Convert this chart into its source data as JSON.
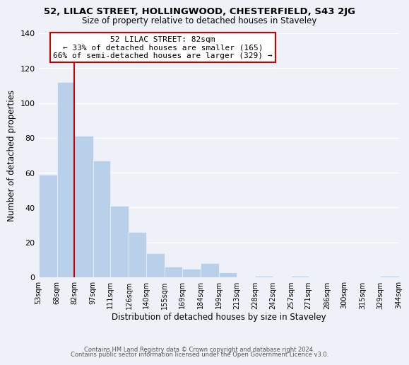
{
  "title": "52, LILAC STREET, HOLLINGWOOD, CHESTERFIELD, S43 2JG",
  "subtitle": "Size of property relative to detached houses in Staveley",
  "xlabel": "Distribution of detached houses by size in Staveley",
  "ylabel": "Number of detached properties",
  "bar_left_edges": [
    53,
    68,
    82,
    97,
    111,
    126,
    140,
    155,
    169,
    184,
    199,
    213,
    228,
    242,
    257,
    271,
    286,
    300,
    315,
    329
  ],
  "bar_heights": [
    59,
    112,
    81,
    67,
    41,
    26,
    14,
    6,
    5,
    8,
    3,
    0,
    1,
    0,
    1,
    0,
    0,
    0,
    0,
    1
  ],
  "bar_widths": [
    15,
    14,
    15,
    14,
    15,
    14,
    15,
    14,
    15,
    15,
    14,
    15,
    14,
    15,
    14,
    15,
    14,
    15,
    14,
    15
  ],
  "tick_labels": [
    "53sqm",
    "68sqm",
    "82sqm",
    "97sqm",
    "111sqm",
    "126sqm",
    "140sqm",
    "155sqm",
    "169sqm",
    "184sqm",
    "199sqm",
    "213sqm",
    "228sqm",
    "242sqm",
    "257sqm",
    "271sqm",
    "286sqm",
    "300sqm",
    "315sqm",
    "329sqm",
    "344sqm"
  ],
  "tick_positions": [
    53,
    68,
    82,
    97,
    111,
    126,
    140,
    155,
    169,
    184,
    199,
    213,
    228,
    242,
    257,
    271,
    286,
    300,
    315,
    329,
    344
  ],
  "bar_color": "#b8d0ea",
  "highlight_x": 82,
  "highlight_color": "#cc0000",
  "annotation_title": "52 LILAC STREET: 82sqm",
  "annotation_line1": "← 33% of detached houses are smaller (165)",
  "annotation_line2": "66% of semi-detached houses are larger (329) →",
  "annotation_box_color": "#ffffff",
  "annotation_box_edge": "#cc0000",
  "ylim": [
    0,
    140
  ],
  "yticks": [
    0,
    20,
    40,
    60,
    80,
    100,
    120,
    140
  ],
  "footer1": "Contains HM Land Registry data © Crown copyright and database right 2024.",
  "footer2": "Contains public sector information licensed under the Open Government Licence v3.0.",
  "background_color": "#eef2f8",
  "grid_color": "#ffffff",
  "xlim_min": 53,
  "xlim_max": 344
}
